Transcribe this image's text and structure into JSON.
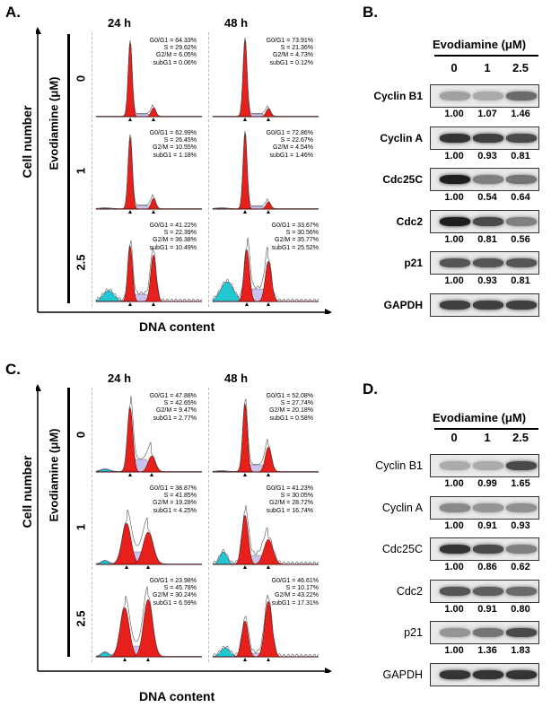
{
  "panels": {
    "A": {
      "label": "A.",
      "time_labels": [
        "24 h",
        "48 h"
      ],
      "y_axis_label": "Cell number",
      "dose_axis_label": "Evodiamine (μM)",
      "dose_labels": [
        "0",
        "1",
        "2.5"
      ],
      "x_axis_label": "DNA content",
      "stats": [
        [
          "G0/G1 = 64.33%\nS = 29.62%\nG2/M = 6.05%\nsubG1 = 0.06%",
          "G0/G1 = 73.91%\nS = 21.36%\nG2/M = 4.73%\nsubG1 = 0.12%"
        ],
        [
          "G0/G1 = 62.99%\nS = 26.45%\nG2/M = 10.55%\nsubG1 = 1.18%",
          "G0/G1 = 72.86%\nS = 22.67%\nG2/M = 4.54%\nsubG1 = 1.46%"
        ],
        [
          "G0/G1 = 41.22%\nS = 22.39%\nG2/M = 36.38%\nsubG1 = 10.49%",
          "G0/G1 = 33.67%\nS = 30.56%\nG2/M = 35.77%\nsubG1 = 25.52%"
        ]
      ]
    },
    "B": {
      "label": "B.",
      "title": "Evodiamine (μM)",
      "lanes": [
        "0",
        "1",
        "2.5"
      ],
      "proteins": [
        {
          "name": "Cyclin B1",
          "quant": [
            "1.00",
            "1.07",
            "1.46"
          ],
          "intensity": [
            0.35,
            0.3,
            0.6
          ]
        },
        {
          "name": "Cyclin A",
          "quant": [
            "1.00",
            "0.93",
            "0.81"
          ],
          "intensity": [
            0.85,
            0.8,
            0.75
          ]
        },
        {
          "name": "Cdc25C",
          "quant": [
            "1.00",
            "0.54",
            "0.64"
          ],
          "intensity": [
            0.95,
            0.5,
            0.55
          ]
        },
        {
          "name": "Cdc2",
          "quant": [
            "1.00",
            "0.81",
            "0.56"
          ],
          "intensity": [
            0.95,
            0.75,
            0.5
          ]
        },
        {
          "name": "p21",
          "quant": [
            "1.00",
            "0.93",
            "0.81"
          ],
          "intensity": [
            0.7,
            0.7,
            0.7
          ]
        },
        {
          "name": "GAPDH",
          "quant": [],
          "intensity": [
            0.8,
            0.8,
            0.8
          ]
        }
      ]
    },
    "C": {
      "label": "C.",
      "time_labels": [
        "24 h",
        "48 h"
      ],
      "y_axis_label": "Cell number",
      "dose_axis_label": "Evodiamine (μM)",
      "dose_labels": [
        "0",
        "1",
        "2.5"
      ],
      "x_axis_label": "DNA content",
      "stats": [
        [
          "G0/G1 = 47.88%\nS = 42.65%\nG2/M = 9.47%\nsubG1 = 2.77%",
          "G0/G1 = 52.08%\nS = 27.74%\nG2/M = 20.18%\nsubG1 = 0.58%"
        ],
        [
          "G0/G1 = 38.87%\nS = 41.85%\nG2/M = 19.28%\nsubG1 = 4.25%",
          "G0/G1 = 41.23%\nS = 30.05%\nG2/M = 28.72%\nsubG1 = 16.74%"
        ],
        [
          "G0/G1 = 23.98%\nS = 45.78%\nG2/M = 30.24%\nsubG1 = 6.59%",
          "G0/G1 = 46.61%\nS = 10.17%\nG2/M = 43.22%\nsubG1 = 17.31%"
        ]
      ]
    },
    "D": {
      "label": "D.",
      "title": "Evodiamine (μM)",
      "lanes": [
        "0",
        "1",
        "2.5"
      ],
      "proteins": [
        {
          "name": "Cyclin B1",
          "quant": [
            "1.00",
            "0.99",
            "1.65"
          ],
          "intensity": [
            0.3,
            0.3,
            0.75
          ]
        },
        {
          "name": "Cyclin A",
          "quant": [
            "1.00",
            "0.91",
            "0.93"
          ],
          "intensity": [
            0.45,
            0.4,
            0.42
          ]
        },
        {
          "name": "Cdc25C",
          "quant": [
            "1.00",
            "0.86",
            "0.62"
          ],
          "intensity": [
            0.85,
            0.75,
            0.5
          ]
        },
        {
          "name": "Cdc2",
          "quant": [
            "1.00",
            "0.91",
            "0.80"
          ],
          "intensity": [
            0.7,
            0.65,
            0.6
          ]
        },
        {
          "name": "p21",
          "quant": [
            "1.00",
            "1.36",
            "1.83"
          ],
          "intensity": [
            0.4,
            0.55,
            0.75
          ]
        },
        {
          "name": "GAPDH",
          "quant": [],
          "intensity": [
            0.85,
            0.85,
            0.85
          ]
        }
      ]
    }
  }
}
